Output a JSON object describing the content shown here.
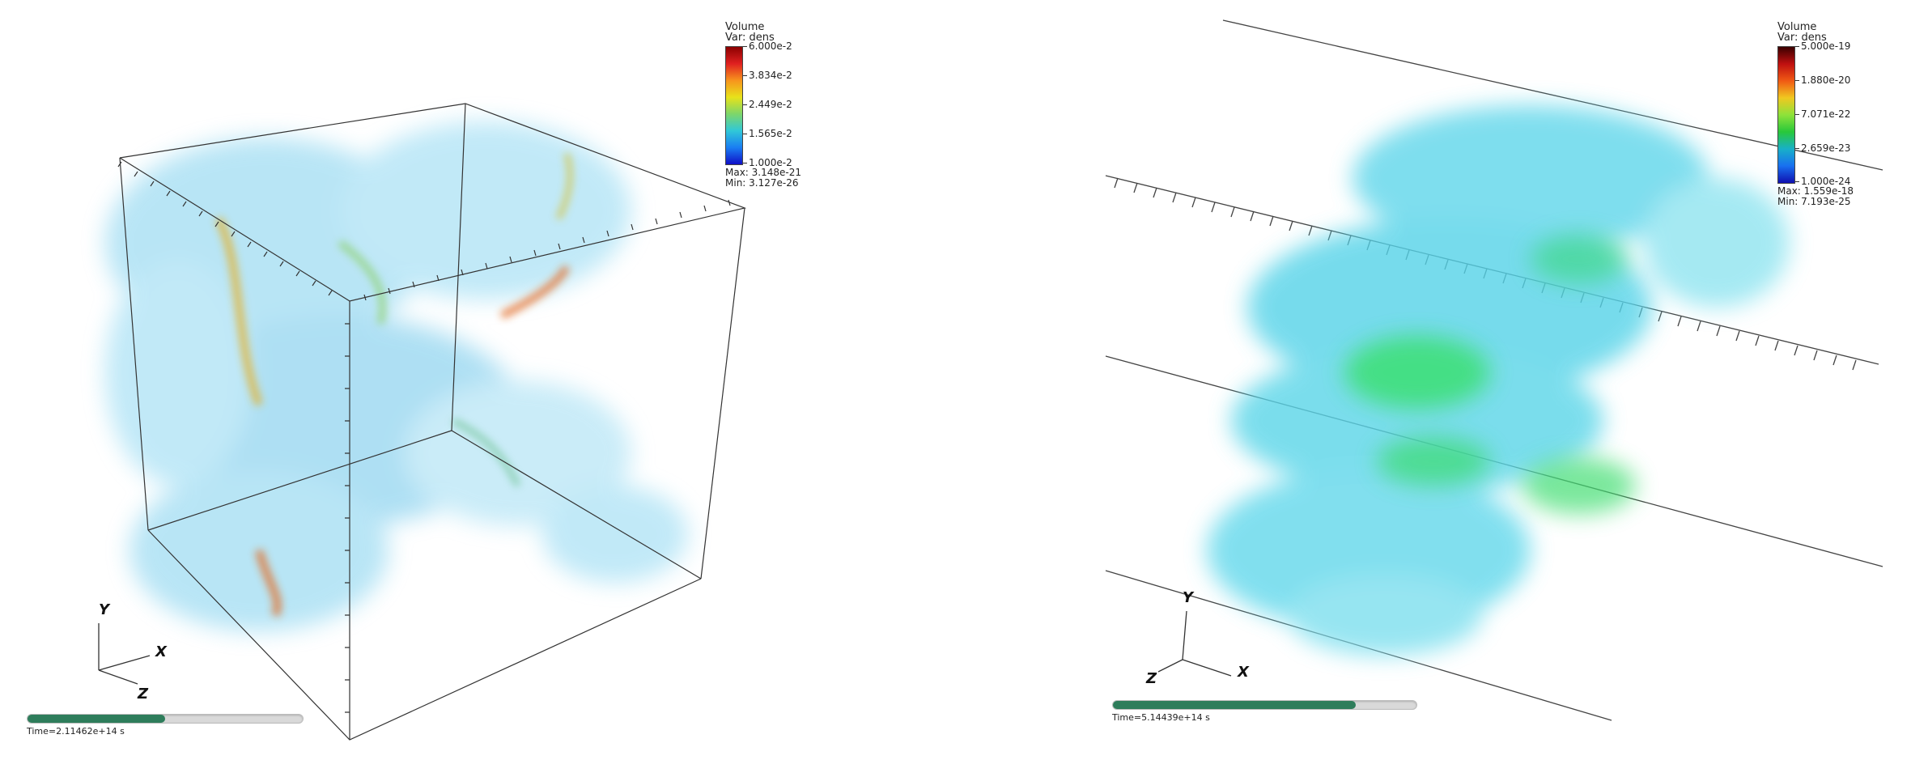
{
  "left": {
    "legend": {
      "title": "Volume",
      "var": "Var: dens",
      "ticks": [
        "6.000e-2",
        "3.834e-2",
        "2.449e-2",
        "1.565e-2",
        "1.000e-2"
      ],
      "max": "Max:  3.148e-21",
      "min": "Min:  3.127e-26"
    },
    "axes": {
      "x": "X",
      "y": "Y",
      "z": "Z"
    },
    "time": {
      "label": "Time=2.11462e+14 s",
      "progress": 0.5
    }
  },
  "right": {
    "legend": {
      "title": "Volume",
      "var": "Var: dens",
      "ticks": [
        "5.000e-19",
        "1.880e-20",
        "7.071e-22",
        "2.659e-23",
        "1.000e-24"
      ],
      "max": "Max:  1.559e-18",
      "min": "Min:  7.193e-25"
    },
    "axes": {
      "x": "X",
      "y": "Y",
      "z": "Z"
    },
    "time": {
      "label": "Time=5.14439e+14 s",
      "progress": 0.8
    }
  },
  "colors": {
    "progress_fill": "#2e7d5b",
    "cloud_low": "#4fc3e8",
    "cloud_mid": "#2ee87a",
    "cloud_high": "#e8731a"
  }
}
